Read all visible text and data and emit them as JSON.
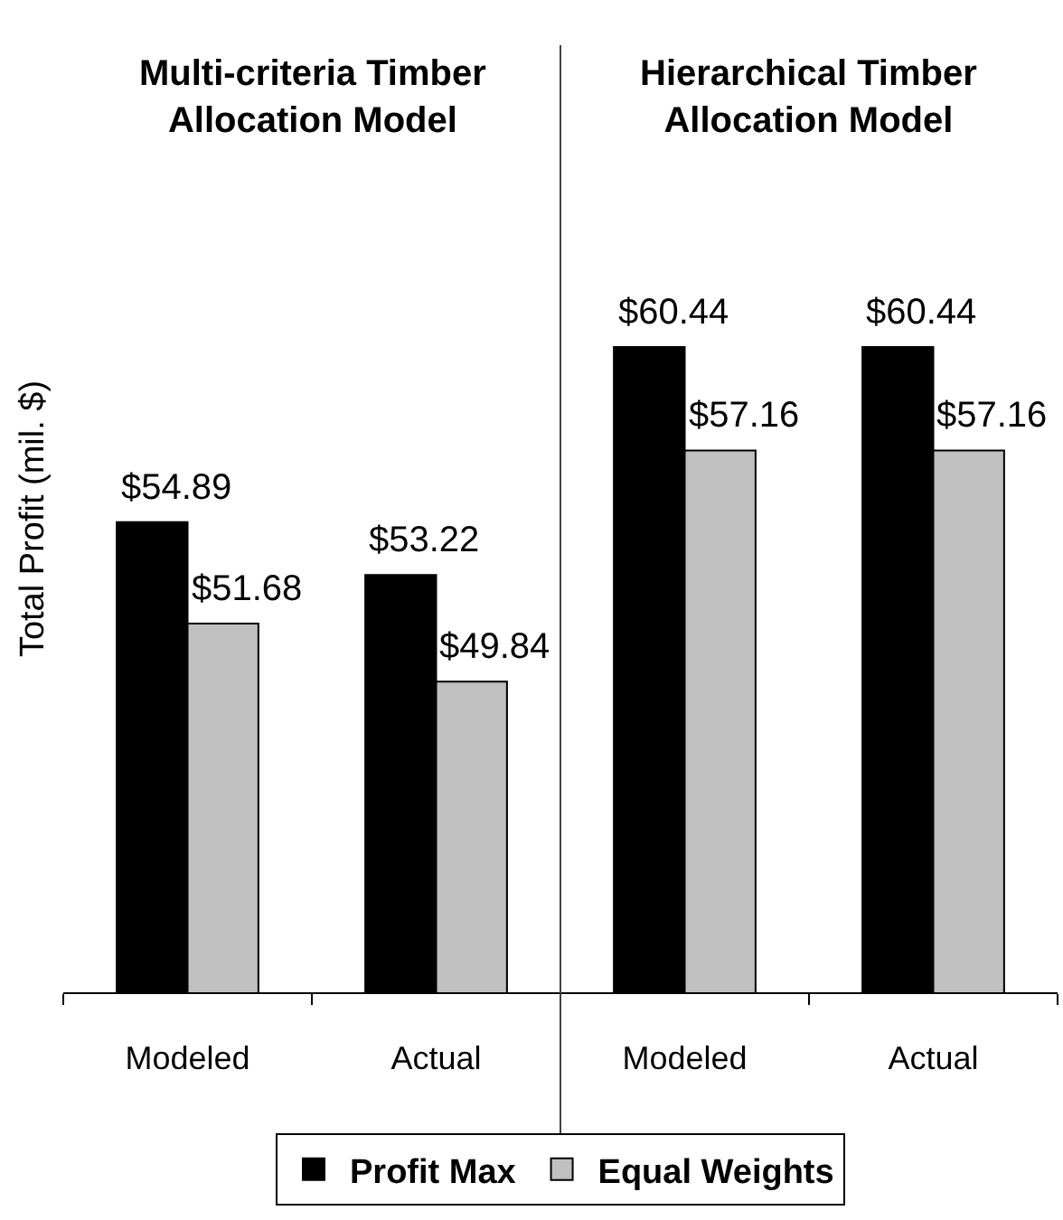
{
  "chart_data": {
    "type": "bar",
    "ylabel": "Total Profit (mil. $)",
    "categories": [
      "Modeled",
      "Actual",
      "Modeled",
      "Actual"
    ],
    "series": [
      {
        "name": "Profit Max",
        "color": "#000000",
        "values": [
          54.89,
          53.22,
          60.44,
          60.44
        ],
        "value_labels": [
          "$54.89",
          "$53.22",
          "$60.44",
          "$60.44"
        ]
      },
      {
        "name": "Equal Weights",
        "color": "#c0c0c0",
        "values": [
          51.68,
          49.84,
          57.16,
          57.16
        ],
        "value_labels": [
          "$51.68",
          "$49.84",
          "$57.16",
          "$57.16"
        ]
      }
    ],
    "annotations": [
      "Multi-criteria Timber Allocation Model",
      "Hierarchical Timber Allocation Model"
    ],
    "ylim": [
      40,
      70
    ],
    "tick_labels": "x",
    "legend": "bottom"
  }
}
